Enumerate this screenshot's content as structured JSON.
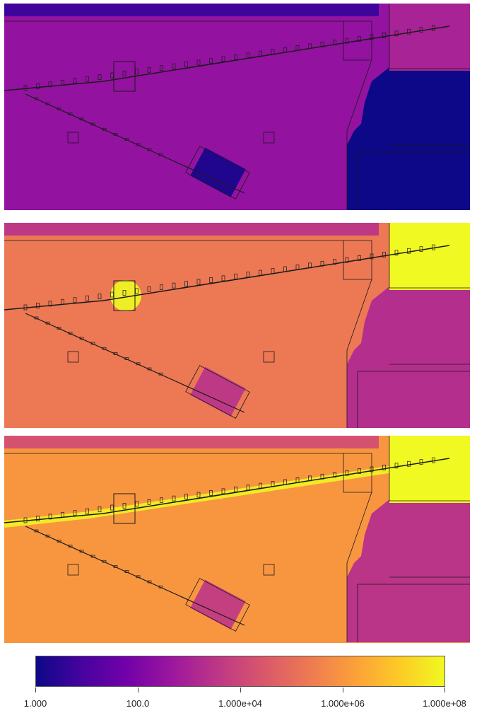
{
  "colors": {
    "colormap": "plasma",
    "stops": [
      "#0d0887",
      "#46039f",
      "#7201a8",
      "#9c179e",
      "#bd3786",
      "#d8576b",
      "#ed7953",
      "#fb9f3a",
      "#fdca26",
      "#f0f921"
    ],
    "geometry_lines": "#1a1a1a"
  },
  "chart_data": {
    "type": "heatmap",
    "panel_count": 3,
    "colorbar": {
      "scale": "log",
      "range": [
        1,
        100000000
      ],
      "tick_labels": [
        "1.000",
        "100.0",
        "1.000e+04",
        "1.000e+06",
        "1.000e+08"
      ],
      "tick_values": [
        1,
        100,
        10000,
        1000000,
        100000000
      ]
    },
    "panels": [
      {
        "background_level": 300,
        "right_blocks_level": 1,
        "top_right_room_level": 1000,
        "hotspot": "none"
      },
      {
        "background_level": 200000,
        "right_blocks_level": 2000,
        "top_right_room_level": 100000000,
        "hotspot": "target station"
      },
      {
        "background_level": 1000000,
        "right_blocks_level": 3000,
        "top_right_room_level": 100000000,
        "hotspot": "upper beamline"
      }
    ]
  }
}
